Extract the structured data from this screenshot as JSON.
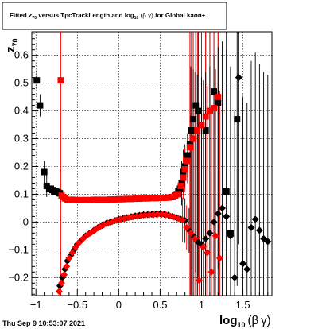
{
  "chart_data": {
    "type": "scatter",
    "title": {
      "prefix": "Fitted ",
      "zsym": "z",
      "zsub": "70",
      "middle": " versus TpcTrackLength and log",
      "logsub": "10",
      "after_log": " (",
      "beta": "β",
      "space": " ",
      "gamma": "γ",
      "close": ")",
      "suffix": " for Global kaon+"
    },
    "ylabel": {
      "sym": "z",
      "sub": "70"
    },
    "xlabel": {
      "main": "log",
      "sub": "10",
      "paren_open": "(",
      "beta": "β",
      "gamma": "γ",
      "paren_close": ")"
    },
    "xlim": [
      -1.05,
      1.85
    ],
    "ylim": [
      -0.265,
      0.685
    ],
    "x_ticks": [
      {
        "v": -1,
        "label": "−1"
      },
      {
        "v": -0.5,
        "label": "−0.5"
      },
      {
        "v": 0,
        "label": "0"
      },
      {
        "v": 0.5,
        "label": "0.5"
      },
      {
        "v": 1,
        "label": "1"
      },
      {
        "v": 1.5,
        "label": "1.5"
      }
    ],
    "y_ticks": [
      {
        "v": -0.2,
        "label": "−0.2"
      },
      {
        "v": -0.1,
        "label": "−0.1"
      },
      {
        "v": 0,
        "label": "0"
      },
      {
        "v": 0.1,
        "label": "0.1"
      },
      {
        "v": 0.2,
        "label": "0.2"
      },
      {
        "v": 0.3,
        "label": "0.3"
      },
      {
        "v": 0.4,
        "label": "0.4"
      },
      {
        "v": 0.5,
        "label": "0.5"
      },
      {
        "v": 0.6,
        "label": "0.6"
      }
    ],
    "grid": true,
    "series": [
      {
        "marker": "square",
        "color": "#000000",
        "x": [
          -0.99,
          -0.95,
          -0.9,
          -0.87,
          -0.84,
          -0.82,
          -0.8,
          -0.78,
          -0.76,
          -0.74,
          -0.72,
          -0.71,
          0.65,
          0.68,
          0.7,
          0.72,
          0.74,
          0.76,
          0.78,
          0.8,
          0.83,
          0.86,
          0.88,
          0.9,
          0.93,
          0.96,
          1.0,
          1.05,
          1.1,
          1.15,
          1.2,
          1.3,
          1.35,
          1.43
        ],
        "y": [
          0.51,
          0.42,
          0.18,
          0.13,
          0.12,
          0.12,
          0.115,
          0.11,
          0.11,
          0.108,
          0.105,
          0.103,
          0.09,
          0.095,
          0.1,
          0.11,
          0.12,
          0.14,
          0.18,
          0.2,
          0.24,
          0.28,
          0.33,
          0.37,
          0.42,
          0.4,
          0.35,
          0.33,
          0.4,
          0.47,
          0.43,
          0.11,
          -0.04,
          0.37
        ]
      },
      {
        "marker": "square",
        "color": "#ff0000",
        "x": [
          -0.7,
          -0.69,
          -0.67,
          -0.65,
          -0.62,
          -0.59,
          -0.55,
          -0.5,
          -0.45,
          -0.4,
          -0.35,
          -0.3,
          -0.25,
          -0.2,
          -0.15,
          -0.1,
          -0.05,
          0.0,
          0.05,
          0.1,
          0.15,
          0.2,
          0.25,
          0.3,
          0.35,
          0.4,
          0.45,
          0.5,
          0.55,
          0.6,
          0.65,
          0.68,
          0.72,
          0.75,
          0.78,
          0.8,
          0.83,
          0.86,
          0.9,
          0.95,
          1.0,
          1.05,
          1.1,
          1.15,
          1.2
        ],
        "y": [
          0.51,
          0.095,
          0.09,
          0.085,
          0.08,
          0.08,
          0.08,
          0.079,
          0.079,
          0.079,
          0.079,
          0.08,
          0.08,
          0.08,
          0.08,
          0.081,
          0.081,
          0.082,
          0.082,
          0.083,
          0.083,
          0.084,
          0.084,
          0.085,
          0.085,
          0.086,
          0.086,
          0.087,
          0.087,
          0.088,
          0.09,
          0.095,
          0.1,
          0.13,
          0.16,
          0.19,
          0.22,
          0.27,
          0.3,
          0.33,
          0.35,
          0.38,
          0.4,
          0.41,
          0.45
        ]
      },
      {
        "marker": "diamond",
        "color": "#000000",
        "x": [
          -0.74,
          -0.71,
          -0.68,
          -0.65,
          -0.62,
          -0.58,
          -0.54,
          -0.5,
          -0.45,
          -0.4,
          -0.35,
          -0.3,
          -0.25,
          -0.2,
          -0.15,
          -0.1,
          -0.05,
          0.0,
          0.05,
          0.1,
          0.15,
          0.2,
          0.25,
          0.3,
          0.35,
          0.4,
          0.45,
          0.5,
          0.55,
          0.6,
          0.65,
          0.7,
          0.75,
          0.8,
          0.85,
          0.9,
          0.95,
          1.0,
          1.05,
          1.1,
          1.15,
          1.2,
          1.25,
          1.3,
          1.35,
          1.4,
          1.45,
          1.5,
          1.55,
          1.6,
          1.65,
          1.7,
          1.75,
          1.8
        ],
        "y": [
          -0.27,
          -0.23,
          -0.2,
          -0.17,
          -0.14,
          -0.12,
          -0.1,
          -0.08,
          -0.065,
          -0.05,
          -0.04,
          -0.03,
          -0.02,
          -0.012,
          -0.005,
          0.0,
          0.005,
          0.01,
          0.013,
          0.016,
          0.019,
          0.022,
          0.024,
          0.026,
          0.027,
          0.028,
          0.029,
          0.03,
          0.028,
          0.025,
          0.02,
          0.015,
          0.01,
          0.005,
          -0.03,
          -0.05,
          -0.07,
          -0.08,
          -0.06,
          -0.04,
          0.0,
          0.03,
          0.05,
          0.02,
          -0.05,
          -0.2,
          0.52,
          -0.15,
          -0.17,
          -0.02,
          0.01,
          -0.03,
          -0.06,
          -0.07
        ]
      },
      {
        "marker": "diamond",
        "color": "#ff0000",
        "x": [
          -0.72,
          -0.69,
          -0.66,
          -0.63,
          -0.6,
          -0.56,
          -0.52,
          -0.48,
          -0.43,
          -0.38,
          -0.33,
          -0.28,
          -0.23,
          -0.18,
          -0.13,
          -0.08,
          -0.03,
          0.02,
          0.07,
          0.12,
          0.17,
          0.22,
          0.27,
          0.32,
          0.37,
          0.42,
          0.47,
          0.52,
          0.57,
          0.62,
          0.67,
          0.72,
          0.77,
          0.82,
          0.87,
          0.92,
          0.97,
          1.02,
          1.07,
          1.12,
          1.17,
          1.22
        ],
        "y": [
          -0.25,
          -0.22,
          -0.19,
          -0.16,
          -0.13,
          -0.11,
          -0.09,
          -0.075,
          -0.06,
          -0.047,
          -0.037,
          -0.027,
          -0.018,
          -0.01,
          -0.004,
          0.001,
          0.006,
          0.01,
          0.013,
          0.016,
          0.019,
          0.021,
          0.023,
          0.025,
          0.026,
          0.027,
          0.028,
          0.028,
          0.026,
          0.022,
          0.018,
          0.013,
          0.008,
          -0.02,
          -0.04,
          -0.06,
          -0.21,
          -0.09,
          -0.11,
          -0.18,
          -0.05,
          -0.13
        ]
      }
    ],
    "footer": "Thu Sep  9 10:53:07 2021"
  }
}
